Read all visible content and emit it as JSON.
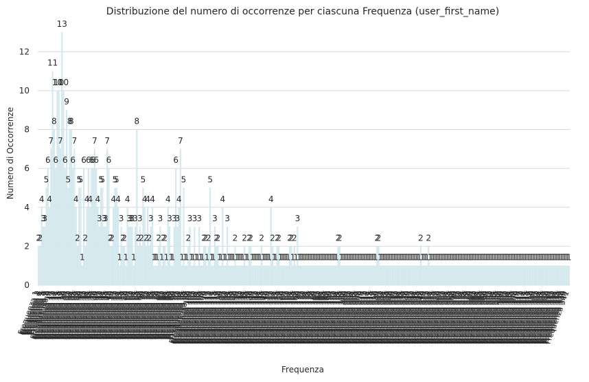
{
  "chart_data": {
    "type": "bar",
    "title": "Distribuzione del numero di occorrenze per ciascuna Frequenza (user_first_name)",
    "xlabel": "Frequenza",
    "ylabel": "Numero di Occorrenze",
    "ylim": [
      0,
      13.6
    ],
    "yticks": [
      0,
      2,
      4,
      6,
      8,
      10,
      12
    ],
    "grid": true,
    "bar_color": "#d7ebf0",
    "category_prefix": "Frequenza ",
    "values": [
      2,
      2,
      4,
      3,
      3,
      5,
      6,
      4,
      7,
      11,
      8,
      6,
      10,
      10,
      7,
      13,
      10,
      6,
      9,
      5,
      8,
      8,
      6,
      7,
      4,
      2,
      5,
      5,
      1,
      6,
      2,
      4,
      6,
      4,
      6,
      6,
      7,
      6,
      4,
      3,
      5,
      5,
      3,
      3,
      7,
      6,
      2,
      2,
      4,
      5,
      5,
      4,
      1,
      3,
      2,
      2,
      1,
      4,
      3,
      3,
      3,
      1,
      3,
      8,
      2,
      3,
      2,
      5,
      4,
      2,
      4,
      2,
      3,
      4,
      1,
      1,
      1,
      2,
      3,
      1,
      2,
      2,
      1,
      4,
      3,
      1,
      1,
      3,
      6,
      3,
      4,
      7,
      1,
      5,
      1,
      1,
      2,
      3,
      1,
      1,
      3,
      1,
      1,
      3,
      1,
      1,
      2,
      2,
      1,
      2,
      5,
      1,
      1,
      3,
      2,
      2,
      1,
      1,
      4,
      1,
      1,
      3,
      1,
      1,
      1,
      1,
      2,
      1,
      1,
      1,
      1,
      1,
      2,
      1,
      1,
      2,
      2,
      1,
      1,
      1,
      1,
      1,
      1,
      2,
      1,
      1,
      1,
      1,
      1,
      4,
      2,
      1,
      1,
      2,
      2,
      1,
      1,
      1,
      1,
      1,
      1,
      2,
      2,
      1,
      2,
      1,
      3,
      1,
      1,
      1,
      1,
      1,
      1,
      1,
      1,
      1,
      1,
      1,
      1,
      1,
      1,
      1,
      1,
      1,
      1,
      1,
      1,
      1,
      1,
      1,
      1,
      1,
      2,
      2,
      1,
      1,
      1,
      1,
      1,
      1,
      1,
      1,
      1,
      1,
      1,
      1,
      1,
      1,
      1,
      1,
      1,
      1,
      1,
      1,
      1,
      1,
      1,
      2,
      2,
      1,
      1,
      1,
      1,
      1,
      1,
      1,
      1,
      1,
      1,
      1,
      1,
      1,
      1,
      1,
      1,
      1,
      1,
      1,
      1,
      1,
      1,
      1,
      1,
      1,
      1,
      2,
      1,
      1,
      1,
      1,
      2,
      1,
      1,
      1,
      1,
      1,
      1,
      1,
      1,
      1,
      1,
      1,
      1,
      1,
      1,
      1,
      1,
      1,
      1,
      1,
      1,
      1,
      1,
      1,
      1,
      1,
      1,
      1,
      1,
      1,
      1,
      1,
      1,
      1,
      1,
      1,
      1,
      1,
      1,
      1,
      1,
      1,
      1,
      1,
      1,
      1,
      1,
      1,
      1,
      1,
      1,
      1,
      1,
      1,
      1,
      1,
      1,
      1,
      1,
      1,
      1,
      1,
      1,
      1,
      1,
      1,
      1,
      1,
      1,
      1,
      1,
      1,
      1,
      1,
      1,
      1,
      1,
      1,
      1,
      1,
      1,
      1,
      1,
      1,
      1,
      1,
      1,
      1,
      1,
      1,
      1
    ]
  }
}
